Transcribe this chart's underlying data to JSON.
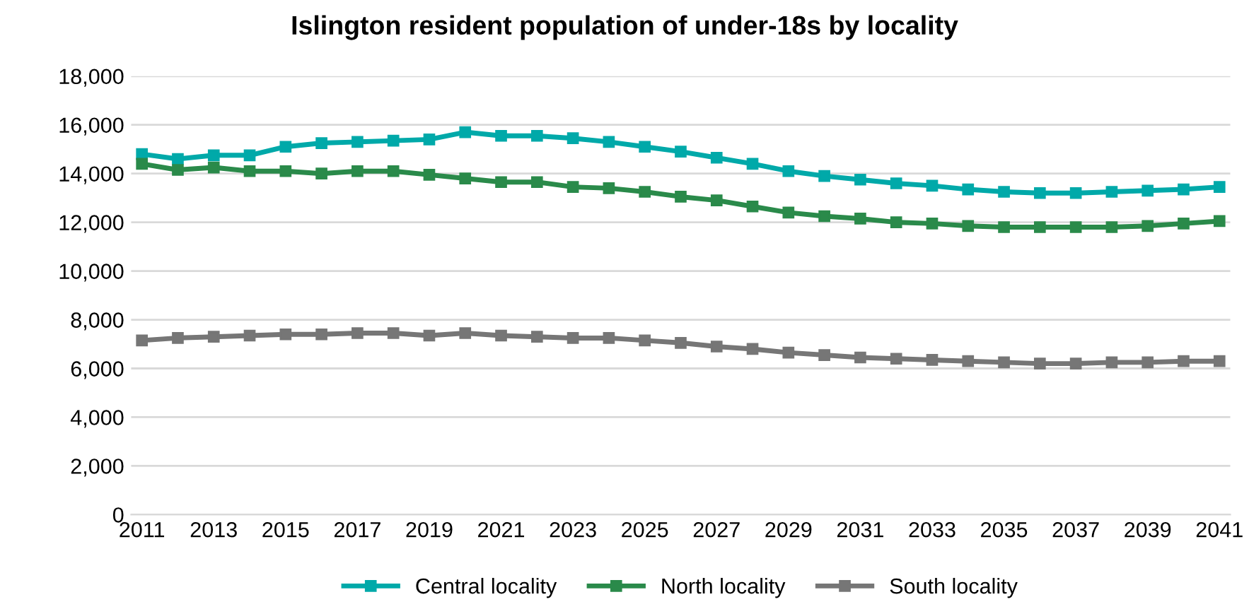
{
  "chart_data": {
    "type": "line",
    "title": "Islington resident population of under-18s by locality",
    "categories": [
      "2011",
      null,
      "2013",
      null,
      "2015",
      null,
      "2017",
      null,
      "2019",
      null,
      "2021",
      null,
      "2023",
      null,
      "2025",
      null,
      "2027",
      null,
      "2029",
      null,
      "2031",
      null,
      "2033",
      null,
      "2035",
      null,
      "2037",
      null,
      "2039",
      null,
      "2041"
    ],
    "series": [
      {
        "name": "Central locality",
        "color": "#00a9a9",
        "values": [
          14800,
          14600,
          14750,
          14750,
          15100,
          15250,
          15300,
          15350,
          15400,
          15700,
          15550,
          15550,
          15450,
          15300,
          15100,
          14900,
          14650,
          14400,
          14100,
          13900,
          13750,
          13600,
          13500,
          13350,
          13250,
          13200,
          13200,
          13250,
          13300,
          13350,
          13450
        ]
      },
      {
        "name": "North locality",
        "color": "#2a8a4a",
        "values": [
          14400,
          14150,
          14250,
          14100,
          14100,
          14000,
          14100,
          14100,
          13950,
          13800,
          13650,
          13650,
          13450,
          13400,
          13250,
          13050,
          12900,
          12650,
          12400,
          12250,
          12150,
          12000,
          11950,
          11850,
          11800,
          11800,
          11800,
          11800,
          11850,
          11950,
          12050
        ]
      },
      {
        "name": "South locality",
        "color": "#767676",
        "values": [
          7150,
          7250,
          7300,
          7350,
          7400,
          7400,
          7450,
          7450,
          7350,
          7450,
          7350,
          7300,
          7250,
          7250,
          7150,
          7050,
          6900,
          6800,
          6650,
          6550,
          6450,
          6400,
          6350,
          6300,
          6250,
          6200,
          6200,
          6250,
          6250,
          6300,
          6300
        ]
      }
    ],
    "ylim": [
      0,
      18000
    ],
    "yticks": [
      {
        "value": 0,
        "label": "0"
      },
      {
        "value": 2000,
        "label": "2,000"
      },
      {
        "value": 4000,
        "label": "4,000"
      },
      {
        "value": 6000,
        "label": "6,000"
      },
      {
        "value": 8000,
        "label": "8,000"
      },
      {
        "value": 10000,
        "label": "10,000"
      },
      {
        "value": 12000,
        "label": "12,000"
      },
      {
        "value": 14000,
        "label": "14,000"
      },
      {
        "value": 16000,
        "label": "16,000"
      },
      {
        "value": 18000,
        "label": "18,000"
      }
    ],
    "grid": "y",
    "legend": "bottom",
    "marker": "square",
    "line_style": "solid"
  }
}
